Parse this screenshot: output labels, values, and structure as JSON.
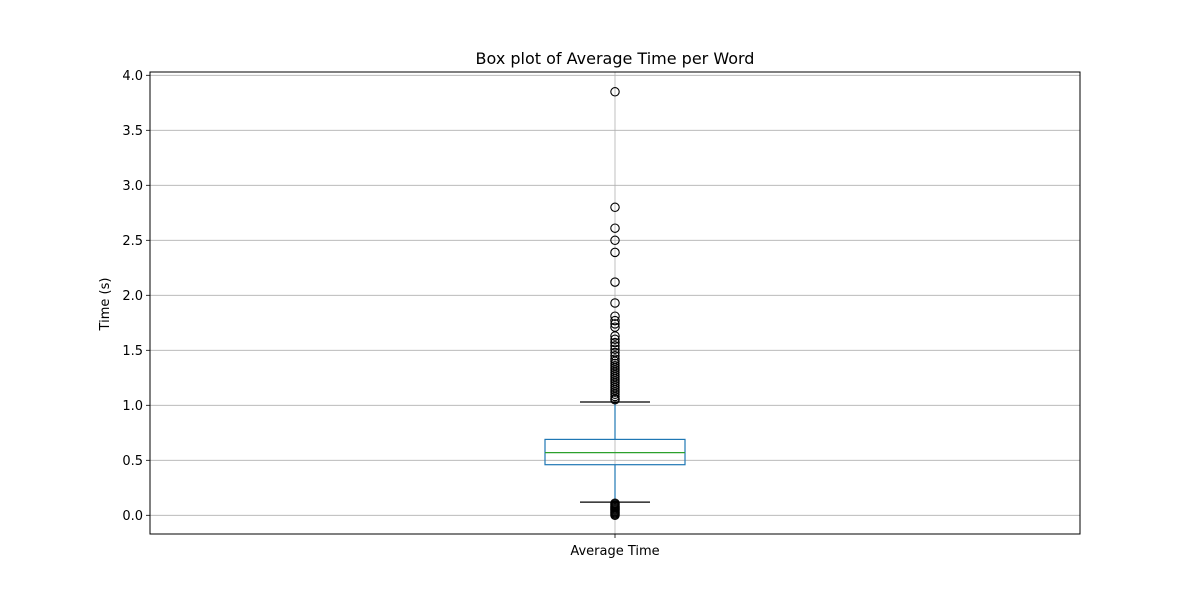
{
  "chart_data": {
    "type": "box",
    "title": "Box plot of Average Time per Word",
    "xlabel": "",
    "ylabel": "Time (s)",
    "categories": [
      "Average Time"
    ],
    "ylim": [
      -0.17,
      4.03
    ],
    "yticks": [
      0.0,
      0.5,
      1.0,
      1.5,
      2.0,
      2.5,
      3.0,
      3.5,
      4.0
    ],
    "ytick_labels": [
      "0.0",
      "0.5",
      "1.0",
      "1.5",
      "2.0",
      "2.5",
      "3.0",
      "3.5",
      "4.0"
    ],
    "grid": true,
    "series": [
      {
        "box": {
          "whisker_low": 0.12,
          "q1": 0.46,
          "median": 0.57,
          "q3": 0.69,
          "whisker_high": 1.03
        },
        "outliers_high": [
          3.85,
          2.8,
          2.61,
          2.5,
          2.39,
          2.12,
          1.93,
          1.81,
          1.77,
          1.74,
          1.71,
          1.63,
          1.6,
          1.57,
          1.54,
          1.51,
          1.48,
          1.45,
          1.42,
          1.4,
          1.38,
          1.36,
          1.34,
          1.32,
          1.3,
          1.28,
          1.26,
          1.24,
          1.22,
          1.2,
          1.18,
          1.16,
          1.14,
          1.12,
          1.1,
          1.08,
          1.06,
          1.05
        ],
        "outliers_low": [
          0.11,
          0.1,
          0.09,
          0.08,
          0.07,
          0.06,
          0.05,
          0.04,
          0.03,
          0.02,
          0.01,
          0.0
        ]
      }
    ],
    "colors": {
      "box": "#1f77b4",
      "median": "#2ca02c",
      "whisker": "#000000",
      "flier": "#000000",
      "grid": "#b0b0b0"
    }
  }
}
